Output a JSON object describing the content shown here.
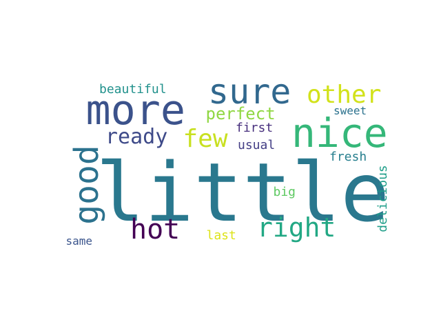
{
  "words": [
    {
      "text": "little",
      "color": "#2a788e"
    },
    {
      "text": "more",
      "color": "#3b528b"
    },
    {
      "text": "nice",
      "color": "#35b779"
    },
    {
      "text": "sure",
      "color": "#31688e"
    },
    {
      "text": "good",
      "color": "#2c728e"
    },
    {
      "text": "other",
      "color": "#d2e21b"
    },
    {
      "text": "right",
      "color": "#22a884"
    },
    {
      "text": "hot",
      "color": "#440154"
    },
    {
      "text": "few",
      "color": "#c8e020"
    },
    {
      "text": "ready",
      "color": "#3e4a89"
    },
    {
      "text": "perfect",
      "color": "#90d743"
    },
    {
      "text": "beautiful",
      "color": "#21918c"
    },
    {
      "text": "first",
      "color": "#472f7d"
    },
    {
      "text": "usual",
      "color": "#433e85"
    },
    {
      "text": "sweet",
      "color": "#2c728e"
    },
    {
      "text": "fresh",
      "color": "#277f8e"
    },
    {
      "text": "delicious",
      "color": "#1f9e89"
    },
    {
      "text": "big",
      "color": "#5ec962"
    },
    {
      "text": "last",
      "color": "#dde318"
    },
    {
      "text": "same",
      "color": "#3a548c"
    }
  ]
}
